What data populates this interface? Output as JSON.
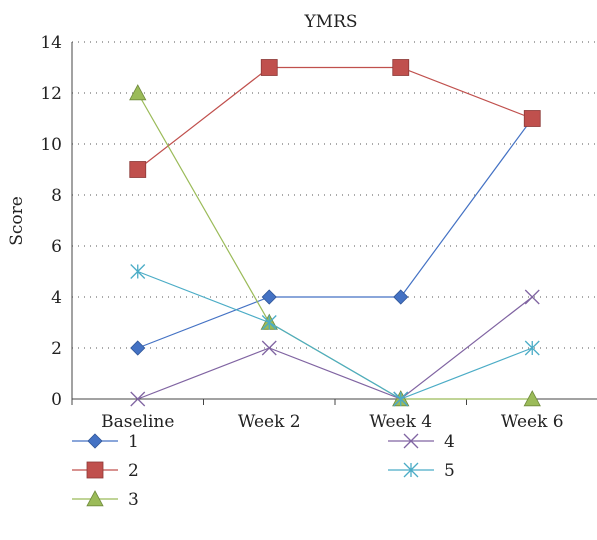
{
  "chart_data": {
    "type": "line",
    "title": "YMRS",
    "xlabel": "",
    "ylabel": "Score",
    "categories": [
      "Baseline",
      "Week 2",
      "Week 4",
      "Week 6"
    ],
    "ylim": [
      0,
      14
    ],
    "yticks": [
      0,
      2,
      4,
      6,
      8,
      10,
      12,
      14
    ],
    "grid": true,
    "legend_position": "bottom",
    "series": [
      {
        "name": "1",
        "values": [
          2,
          4,
          4,
          11
        ],
        "color": "#4472C4",
        "marker": "diamond"
      },
      {
        "name": "2",
        "values": [
          9,
          13,
          13,
          11
        ],
        "color": "#C0504D",
        "marker": "square"
      },
      {
        "name": "3",
        "values": [
          12,
          3,
          0,
          0
        ],
        "color": "#9BBB59",
        "marker": "triangle"
      },
      {
        "name": "4",
        "values": [
          0,
          2,
          0,
          4
        ],
        "color": "#8064A2",
        "marker": "x"
      },
      {
        "name": "5",
        "values": [
          5,
          3,
          0,
          2
        ],
        "color": "#4BACC6",
        "marker": "star"
      }
    ]
  }
}
